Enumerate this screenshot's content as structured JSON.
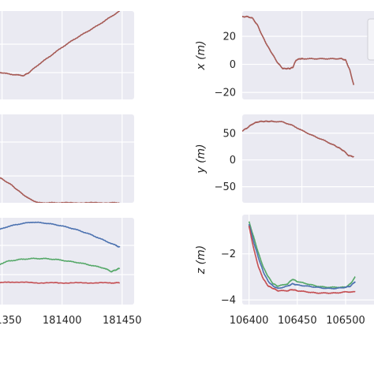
{
  "colors": {
    "panel_bg": "#eaeaf2",
    "grid": "#ffffff",
    "blue": "#4c72b0",
    "green": "#55a868",
    "red": "#c44e52",
    "brown": "#a65a55",
    "text": "#262626"
  },
  "chart_data": [
    {
      "type": "line",
      "panel": "left-top",
      "xlim": [
        181345,
        181460
      ],
      "ylim": [
        0,
        1
      ],
      "x_ticks": [
        181350,
        181400,
        181450
      ],
      "grid": true,
      "series": [
        {
          "color": "brown",
          "x": [
            181345,
            181350,
            181360,
            181368,
            181372,
            181380,
            181390,
            181400,
            181410,
            181420,
            181430,
            181440,
            181448
          ],
          "y": [
            0.32,
            0.3,
            0.28,
            0.27,
            0.3,
            0.39,
            0.49,
            0.59,
            0.68,
            0.76,
            0.84,
            0.93,
            1.0
          ]
        }
      ]
    },
    {
      "type": "line",
      "panel": "left-middle",
      "xlim": [
        181345,
        181460
      ],
      "ylim": [
        0,
        1
      ],
      "x_ticks": [
        181350,
        181400,
        181450
      ],
      "grid": true,
      "series": [
        {
          "color": "brown",
          "x": [
            181345,
            181350,
            181358,
            181365,
            181372,
            181380,
            181390,
            181400,
            181420,
            181440,
            181448
          ],
          "y": [
            0.3,
            0.27,
            0.2,
            0.12,
            0.05,
            0.0,
            0.0,
            0.0,
            0.0,
            0.0,
            0.0
          ]
        }
      ]
    },
    {
      "type": "line",
      "panel": "left-bottom",
      "xlim": [
        181345,
        181460
      ],
      "ylim": [
        0,
        1
      ],
      "x_ticks": [
        181350,
        181400,
        181450
      ],
      "tick_labels": [
        "181350",
        "181400",
        "181450"
      ],
      "grid": true,
      "series": [
        {
          "color": "blue",
          "x": [
            181345,
            181355,
            181365,
            181375,
            181385,
            181395,
            181405,
            181415,
            181425,
            181435,
            181445,
            181448
          ],
          "y": [
            0.85,
            0.9,
            0.93,
            0.95,
            0.94,
            0.92,
            0.89,
            0.85,
            0.8,
            0.74,
            0.68,
            0.66
          ]
        },
        {
          "color": "green",
          "x": [
            181345,
            181355,
            181365,
            181375,
            181385,
            181395,
            181405,
            181415,
            181425,
            181435,
            181441,
            181445,
            181448
          ],
          "y": [
            0.45,
            0.5,
            0.52,
            0.53,
            0.53,
            0.52,
            0.5,
            0.48,
            0.45,
            0.42,
            0.38,
            0.4,
            0.42
          ]
        },
        {
          "color": "red",
          "x": [
            181345,
            181360,
            181380,
            181400,
            181420,
            181440,
            181448
          ],
          "y": [
            0.25,
            0.26,
            0.25,
            0.25,
            0.25,
            0.25,
            0.25
          ]
        }
      ]
    },
    {
      "type": "line",
      "panel": "right-top",
      "ylabel": "x (m)",
      "xlim": [
        106400,
        106540
      ],
      "ylim": [
        -25,
        38
      ],
      "y_ticks": [
        20,
        0,
        -20
      ],
      "tick_labels": [
        "20",
        "0",
        "−20"
      ],
      "grid": true,
      "series": [
        {
          "color": "brown",
          "x": [
            106400,
            106405,
            106410,
            106415,
            106420,
            106425,
            106430,
            106435,
            106440,
            106444,
            106447,
            106450,
            106453,
            106457,
            106460,
            106470,
            106480,
            106490,
            106498,
            106502,
            106506,
            106510
          ],
          "y": [
            34,
            34,
            33,
            28,
            20,
            13,
            7,
            1,
            -3,
            -3,
            -3,
            -2,
            3,
            4,
            4,
            4,
            4,
            4,
            4,
            3,
            -4,
            -15
          ]
        }
      ]
    },
    {
      "type": "line",
      "panel": "right-middle",
      "ylabel": "y (m)",
      "xlim": [
        106400,
        106540
      ],
      "ylim": [
        -80,
        85
      ],
      "y_ticks": [
        50,
        0,
        -50
      ],
      "tick_labels": [
        "50",
        "0",
        "−50"
      ],
      "grid": true,
      "series": [
        {
          "color": "brown",
          "x": [
            106400,
            106405,
            106410,
            106415,
            106420,
            106425,
            106430,
            106440,
            106450,
            106460,
            106470,
            106480,
            106490,
            106495,
            106500,
            106505,
            106510
          ],
          "y": [
            54,
            60,
            67,
            71,
            72,
            72,
            72,
            71,
            64,
            54,
            45,
            37,
            28,
            23,
            17,
            8,
            6
          ]
        }
      ]
    },
    {
      "type": "line",
      "panel": "right-bottom",
      "ylabel": "z (m)",
      "xlim": [
        106393,
        106540
      ],
      "ylim": [
        -4.2,
        -0.3
      ],
      "y_ticks": [
        -2,
        -4
      ],
      "x_ticks": [
        106400,
        106450,
        106500
      ],
      "tick_labels": [
        "−2",
        "−4",
        "106400",
        "106450",
        "106500"
      ],
      "grid": true,
      "series": [
        {
          "color": "green",
          "x": [
            106400,
            106405,
            106410,
            106415,
            106420,
            106425,
            106430,
            106440,
            106445,
            106450,
            106460,
            106470,
            106480,
            106490,
            106500,
            106505,
            106510
          ],
          "y": [
            -0.6,
            -1.3,
            -2.0,
            -2.6,
            -3.0,
            -3.3,
            -3.4,
            -3.3,
            -3.1,
            -3.2,
            -3.3,
            -3.4,
            -3.45,
            -3.45,
            -3.45,
            -3.3,
            -3.0
          ]
        },
        {
          "color": "blue",
          "x": [
            106400,
            106405,
            106410,
            106415,
            106420,
            106425,
            106430,
            106440,
            106445,
            106450,
            106460,
            106470,
            106480,
            106490,
            106500,
            106505,
            106510
          ],
          "y": [
            -0.7,
            -1.5,
            -2.2,
            -2.8,
            -3.2,
            -3.4,
            -3.5,
            -3.4,
            -3.3,
            -3.35,
            -3.4,
            -3.45,
            -3.5,
            -3.5,
            -3.45,
            -3.4,
            -3.2
          ]
        },
        {
          "color": "red",
          "x": [
            106400,
            106405,
            106410,
            106415,
            106420,
            106425,
            106430,
            106440,
            106445,
            106450,
            106460,
            106470,
            106480,
            106490,
            106500,
            106510
          ],
          "y": [
            -0.8,
            -1.8,
            -2.6,
            -3.1,
            -3.4,
            -3.5,
            -3.6,
            -3.6,
            -3.55,
            -3.6,
            -3.65,
            -3.7,
            -3.7,
            -3.7,
            -3.65,
            -3.65
          ]
        }
      ]
    }
  ]
}
